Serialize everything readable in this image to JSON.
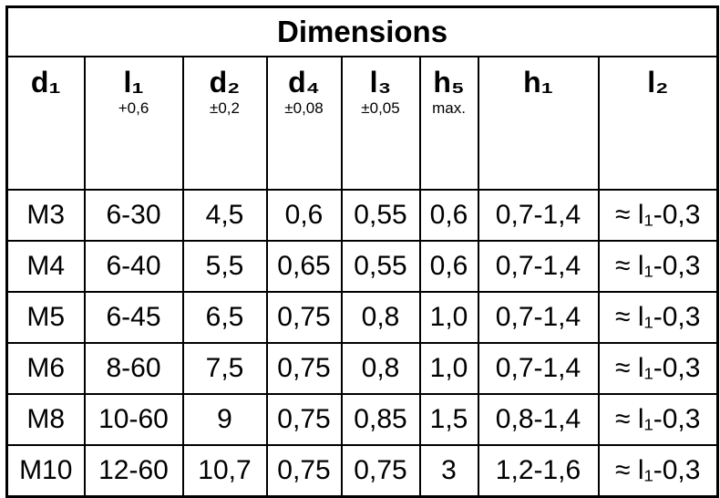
{
  "header": {
    "title": "Dimensions"
  },
  "table": {
    "columns": [
      {
        "symbol": "d₁"
      },
      {
        "symbol": "l₁",
        "tolerance": "+0,6"
      },
      {
        "symbol": "d₂",
        "tolerance": "±0,2"
      },
      {
        "symbol": "d₄",
        "tolerance": "±0,08"
      },
      {
        "symbol": "l₃",
        "tolerance": "±0,05"
      },
      {
        "symbol": "h₅",
        "tolerance": "max."
      },
      {
        "symbol": "h₁"
      },
      {
        "symbol": "l₂"
      }
    ],
    "rows": [
      [
        "M3",
        "6-30",
        "4,5",
        "0,6",
        "0,55",
        "0,6",
        "0,7-1,4",
        "≈ l₁-0,3"
      ],
      [
        "M4",
        "6-40",
        "5,5",
        "0,65",
        "0,55",
        "0,6",
        "0,7-1,4",
        "≈ l₁-0,3"
      ],
      [
        "M5",
        "6-45",
        "6,5",
        "0,75",
        "0,8",
        "1,0",
        "0,7-1,4",
        "≈ l₁-0,3"
      ],
      [
        "M6",
        "8-60",
        "7,5",
        "0,75",
        "0,8",
        "1,0",
        "0,7-1,4",
        "≈ l₁-0,3"
      ],
      [
        "M8",
        "10-60",
        "9",
        "0,75",
        "0,85",
        "1,5",
        "0,8-1,4",
        "≈ l₁-0,3"
      ],
      [
        "M10",
        "12-60",
        "10,7",
        "0,75",
        "0,75",
        "3",
        "1,2-1,6",
        "≈ l₁-0,3"
      ]
    ]
  }
}
